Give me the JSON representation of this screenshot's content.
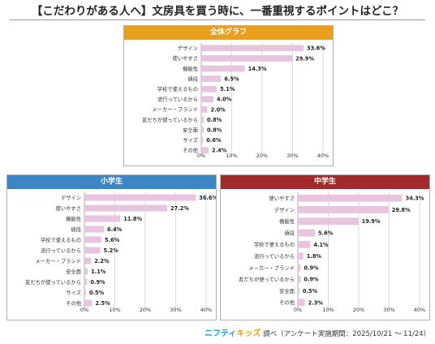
{
  "title": "【こだわりがある人へ】文房具を買う時に、一番重視するポイントはどこ？",
  "colors": {
    "overall_head": "#e8a01c",
    "elementary_head": "#3d86c6",
    "junior_head": "#a32a2a",
    "bar": "#e8c5de",
    "grid": "#d0d0d0"
  },
  "footer": {
    "logo_part1": "ニフティ",
    "logo_part2": "キッズ",
    "text": "調べ（アンケート実施期間：2025/10/21 ～ 11/24）"
  },
  "chart_data": [
    {
      "type": "bar",
      "orientation": "horizontal",
      "title": "全体グラフ",
      "categories": [
        "デザイン",
        "使いやすさ",
        "機能性",
        "値段",
        "学校で使えるもの",
        "流行っているから",
        "メーカー・ブランド",
        "友だちが使っているから",
        "安全面",
        "サイズ",
        "その他"
      ],
      "values": [
        33.6,
        29.9,
        14.3,
        6.5,
        5.1,
        4.0,
        2.0,
        0.8,
        0.8,
        0.6,
        2.4
      ],
      "value_labels": [
        "33.6%",
        "29.9%",
        "14.3%",
        "6.5%",
        "5.1%",
        "4.0%",
        "2.0%",
        "0.8%",
        "0.8%",
        "0.6%",
        "2.4%"
      ],
      "xlim": [
        0,
        40
      ],
      "ticks": [
        "0%",
        "10%",
        "20%",
        "30%",
        "40%"
      ],
      "grid": true
    },
    {
      "type": "bar",
      "orientation": "horizontal",
      "title": "小学生",
      "categories": [
        "デザイン",
        "使いやすさ",
        "機能性",
        "値段",
        "学校で使えるもの",
        "流行っているから",
        "メーカー・ブランド",
        "安全面",
        "友だちが使っているから",
        "サイズ",
        "その他"
      ],
      "values": [
        36.6,
        27.2,
        11.8,
        6.4,
        5.6,
        5.2,
        2.2,
        1.1,
        0.9,
        0.5,
        2.5
      ],
      "value_labels": [
        "36.6%",
        "27.2%",
        "11.8%",
        "6.4%",
        "5.6%",
        "5.2%",
        "2.2%",
        "1.1%",
        "0.9%",
        "0.5%",
        "2.5%"
      ],
      "xlim": [
        0,
        40
      ],
      "ticks": [
        "0%",
        "10%",
        "20%",
        "30%",
        "40%"
      ],
      "grid": true
    },
    {
      "type": "bar",
      "orientation": "horizontal",
      "title": "中学生",
      "categories": [
        "使いやすさ",
        "デザイン",
        "機能性",
        "値段",
        "学校で使えるもの",
        "流行っているから",
        "メーカー・ブランド",
        "友だちが使っているから",
        "安全面",
        "その他"
      ],
      "values": [
        34.3,
        29.8,
        19.9,
        5.6,
        4.1,
        1.8,
        0.9,
        0.9,
        0.5,
        2.3
      ],
      "value_labels": [
        "34.3%",
        "29.8%",
        "19.9%",
        "5.6%",
        "4.1%",
        "1.8%",
        "0.9%",
        "0.9%",
        "0.5%",
        "2.3%"
      ],
      "xlim": [
        0,
        40
      ],
      "ticks": [
        "0%",
        "10%",
        "20%",
        "30%",
        "40%"
      ],
      "grid": true
    }
  ]
}
